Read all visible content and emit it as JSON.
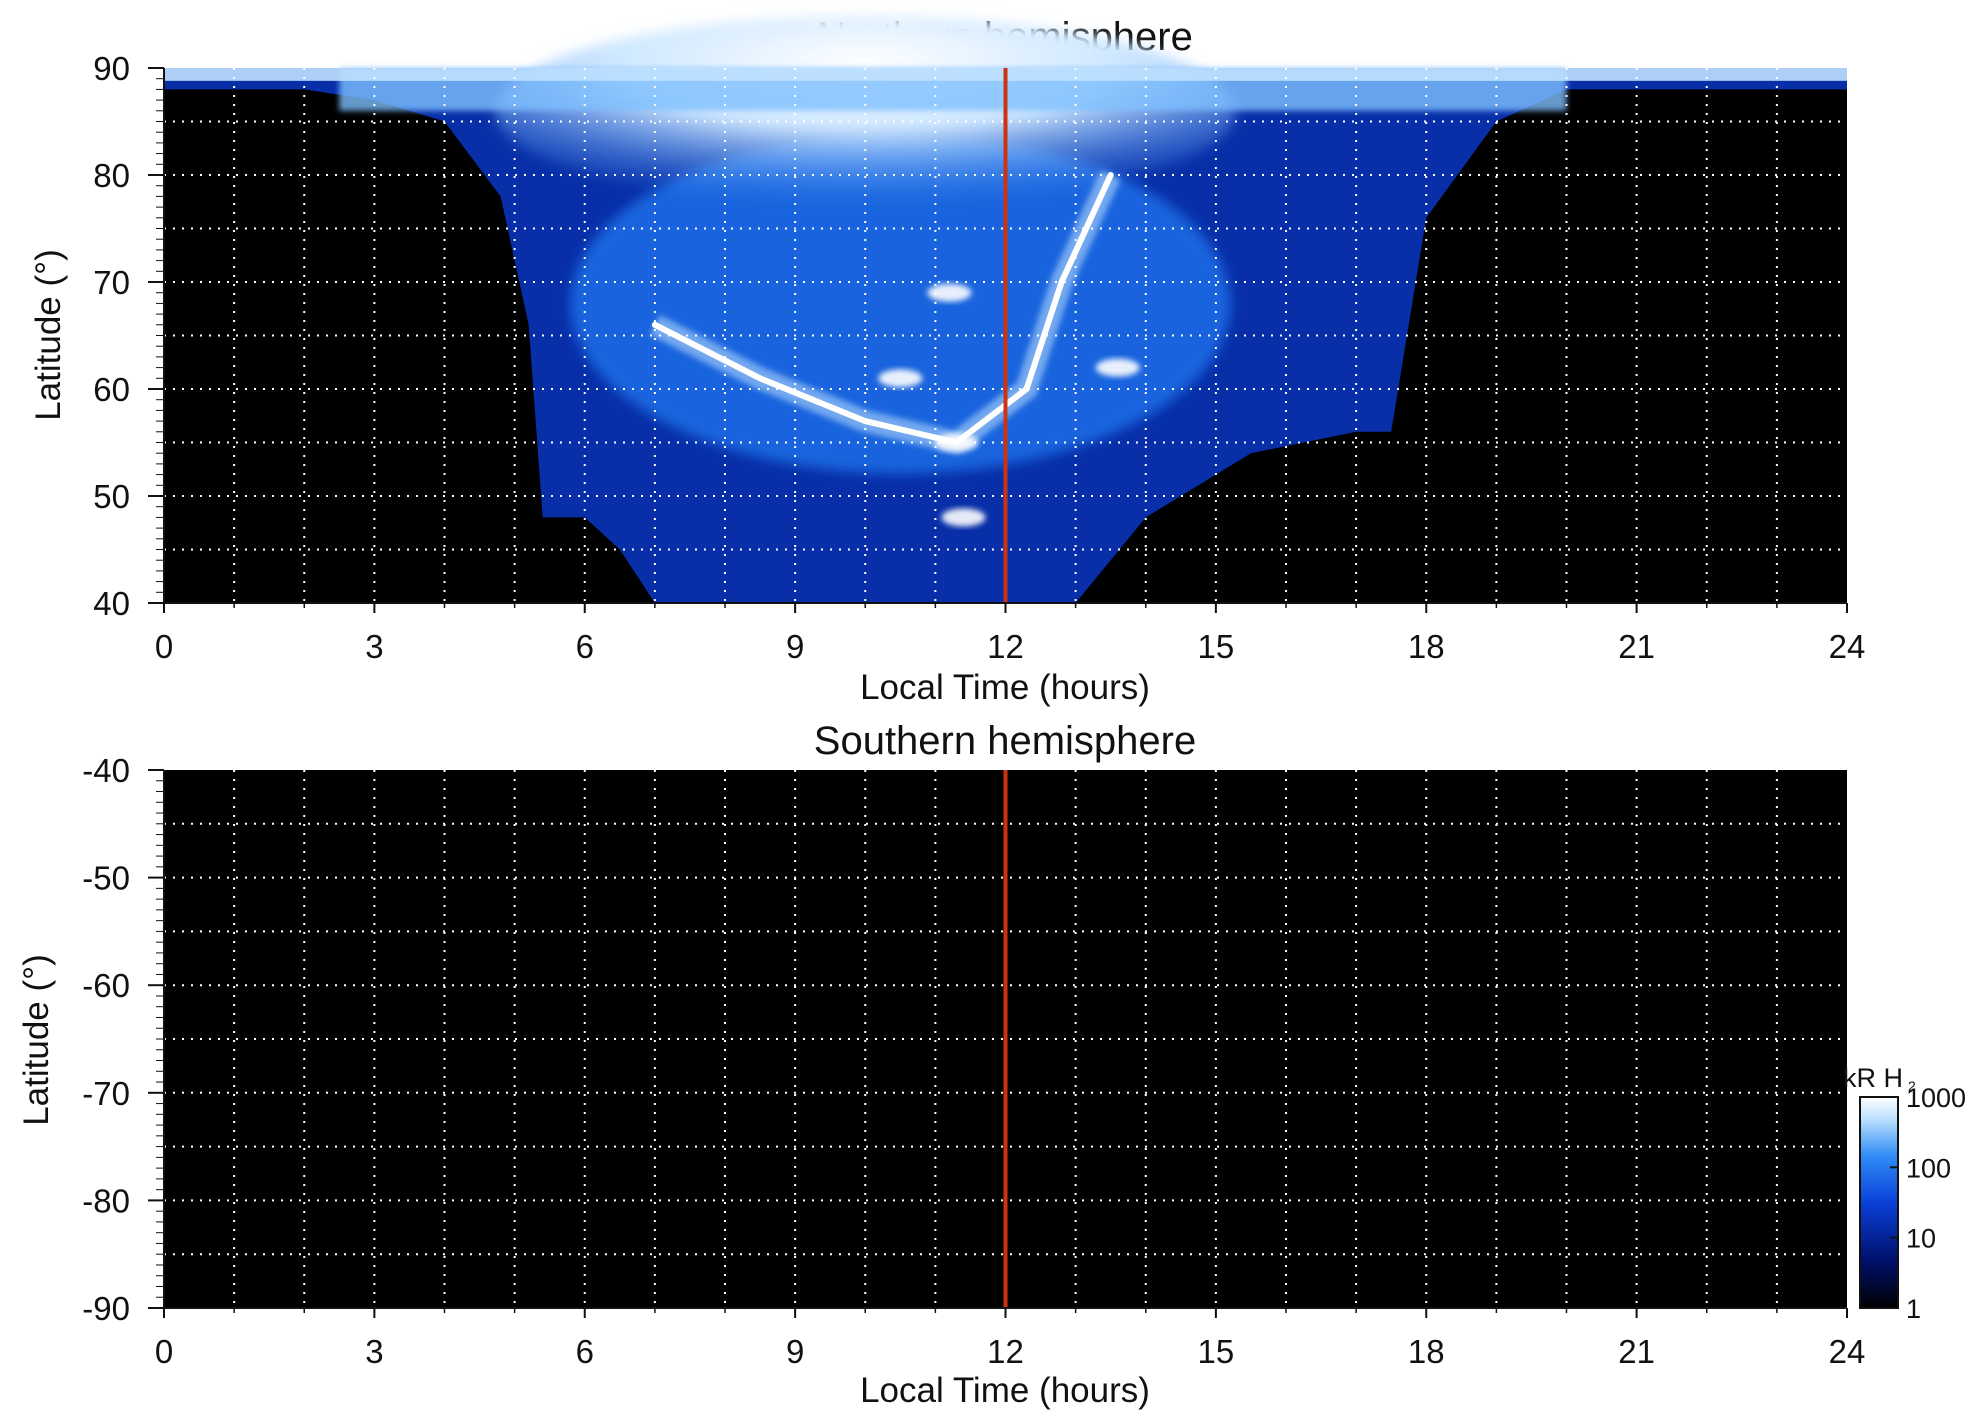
{
  "chart_data": [
    {
      "type": "heatmap",
      "title": "Northern hemisphere",
      "xlabel": "Local Time (hours)",
      "ylabel": "Latitude (°)",
      "xlim": [
        0,
        24
      ],
      "ylim": [
        40,
        90
      ],
      "x_ticks": [
        "0",
        "3",
        "6",
        "9",
        "12",
        "15",
        "18",
        "21",
        "24"
      ],
      "y_ticks": [
        "40",
        "50",
        "60",
        "70",
        "80",
        "90"
      ],
      "grid": true,
      "reference_line": {
        "x": 12,
        "color": "#cc3311"
      },
      "background_color": "#000000",
      "coverage": [
        {
          "lt": 0,
          "lat_min": 88
        },
        {
          "lt": 1,
          "lat_min": 88
        },
        {
          "lt": 2,
          "lat_min": 88
        },
        {
          "lt": 3,
          "lat_min": 87
        },
        {
          "lt": 4,
          "lat_min": 85
        },
        {
          "lt": 4.8,
          "lat_min": 78
        },
        {
          "lt": 5.2,
          "lat_min": 66
        },
        {
          "lt": 5.4,
          "lat_min": 48
        },
        {
          "lt": 6,
          "lat_min": 48
        },
        {
          "lt": 6.5,
          "lat_min": 45
        },
        {
          "lt": 7,
          "lat_min": 40
        },
        {
          "lt": 13,
          "lat_min": 40
        },
        {
          "lt": 14,
          "lat_min": 48
        },
        {
          "lt": 15.5,
          "lat_min": 54
        },
        {
          "lt": 17,
          "lat_min": 56
        },
        {
          "lt": 17.5,
          "lat_min": 56
        },
        {
          "lt": 18,
          "lat_min": 76
        },
        {
          "lt": 19,
          "lat_min": 85
        },
        {
          "lt": 20,
          "lat_min": 88
        },
        {
          "lt": 24,
          "lat_min": 88
        }
      ],
      "features": [
        {
          "kind": "main-oval-arc",
          "points": [
            [
              7.0,
              66
            ],
            [
              8.5,
              61
            ],
            [
              10.0,
              57
            ],
            [
              11.3,
              55
            ],
            [
              12.3,
              60
            ],
            [
              12.8,
              70
            ],
            [
              13.5,
              80
            ]
          ],
          "intensity": 1000
        },
        {
          "kind": "bright-spot",
          "lt": 11.4,
          "lat": 48,
          "intensity": 1000
        },
        {
          "kind": "bright-spot",
          "lt": 11.3,
          "lat": 55,
          "intensity": 1000
        },
        {
          "kind": "bright-spot",
          "lt": 10.5,
          "lat": 61,
          "intensity": 800
        },
        {
          "kind": "bright-spot",
          "lt": 11.2,
          "lat": 69,
          "intensity": 700
        },
        {
          "kind": "bright-spot",
          "lt": 13.6,
          "lat": 62,
          "intensity": 800
        },
        {
          "kind": "cusp-region",
          "lt_range": [
            6,
            14
          ],
          "lat_range": [
            73,
            90
          ],
          "intensity": 1000
        }
      ]
    },
    {
      "type": "heatmap",
      "title": "Southern hemisphere",
      "xlabel": "Local Time (hours)",
      "ylabel": "Latitude (°)",
      "xlim": [
        0,
        24
      ],
      "ylim": [
        -90,
        -40
      ],
      "x_ticks": [
        "0",
        "3",
        "6",
        "9",
        "12",
        "15",
        "18",
        "21",
        "24"
      ],
      "y_ticks": [
        "-40",
        "-50",
        "-60",
        "-70",
        "-80",
        "-90"
      ],
      "grid": true,
      "reference_line": {
        "x": 12,
        "color": "#cc3311"
      },
      "background_color": "#000000",
      "coverage": []
    }
  ],
  "colorbar": {
    "unit": "kR H",
    "unit_subscript": "2",
    "scale": "log",
    "range": [
      1,
      1000
    ],
    "tick_labels": [
      "1000",
      "100",
      "10",
      "1"
    ],
    "colors": [
      "#000000",
      "#00106a",
      "#0a40d8",
      "#2f8cf5",
      "#bfe2ff",
      "#ffffff"
    ]
  }
}
